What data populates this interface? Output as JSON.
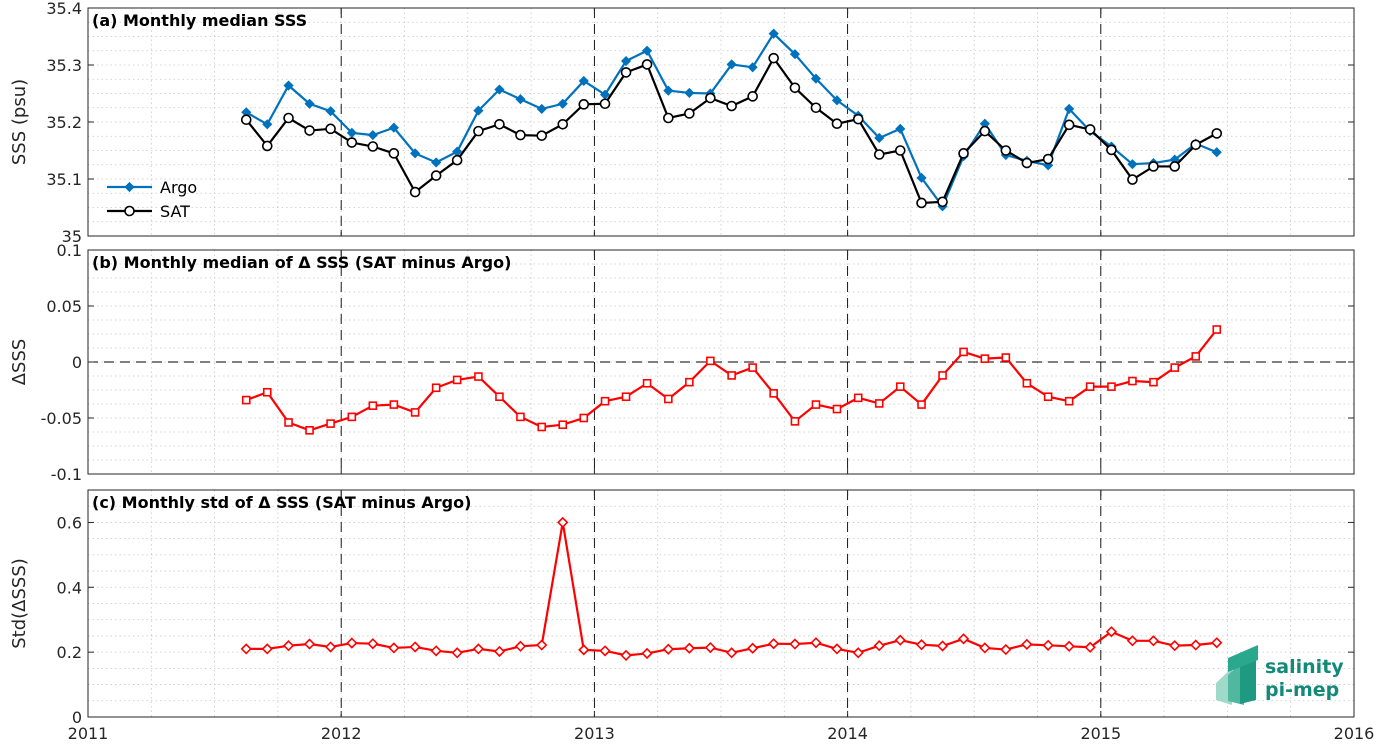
{
  "chart_data": [
    {
      "type": "line",
      "title": "(a) Monthly median SSS",
      "ylabel": "SSS (psu)",
      "xlim": [
        2011,
        2016
      ],
      "ylim": [
        35,
        35.4
      ],
      "yticks": [
        "35",
        "35.1",
        "35.2",
        "35.3",
        "35.4"
      ],
      "xticks": [
        "2011",
        "2012",
        "2013",
        "2014",
        "2015",
        "2016"
      ],
      "grid": true,
      "legend": "bottom-left",
      "year_lines": [
        2012,
        2013,
        2014,
        2015
      ],
      "x": [
        2011.625,
        2011.708,
        2011.792,
        2011.875,
        2011.958,
        2012.042,
        2012.125,
        2012.208,
        2012.292,
        2012.375,
        2012.458,
        2012.542,
        2012.625,
        2012.708,
        2012.792,
        2012.875,
        2012.958,
        2013.042,
        2013.125,
        2013.208,
        2013.292,
        2013.375,
        2013.458,
        2013.542,
        2013.625,
        2013.708,
        2013.792,
        2013.875,
        2013.958,
        2014.042,
        2014.125,
        2014.208,
        2014.292,
        2014.375,
        2014.458,
        2014.542,
        2014.625,
        2014.708,
        2014.792,
        2014.875,
        2014.958,
        2015.042,
        2015.125,
        2015.208,
        2015.292,
        2015.375,
        2015.458
      ],
      "series": [
        {
          "name": "Argo",
          "color": "#0072bd",
          "marker": "diamond",
          "values": [
            35.217,
            35.196,
            35.264,
            35.232,
            35.219,
            35.181,
            35.177,
            35.19,
            35.145,
            35.129,
            35.148,
            35.22,
            35.257,
            35.24,
            35.223,
            35.232,
            35.272,
            35.248,
            35.307,
            35.325,
            35.255,
            35.251,
            35.25,
            35.301,
            35.296,
            35.355,
            35.319,
            35.276,
            35.238,
            35.211,
            35.172,
            35.188,
            35.102,
            35.052,
            35.14,
            35.197,
            35.142,
            35.132,
            35.124,
            35.223,
            35.184,
            35.157,
            35.126,
            35.128,
            35.134,
            35.162,
            35.147
          ]
        },
        {
          "name": "SAT",
          "color": "#000000",
          "marker": "circle",
          "values": [
            35.204,
            35.158,
            35.207,
            35.185,
            35.188,
            35.164,
            35.157,
            35.145,
            35.077,
            35.106,
            35.133,
            35.184,
            35.196,
            35.177,
            35.176,
            35.196,
            35.231,
            35.232,
            35.287,
            35.301,
            35.207,
            35.215,
            35.242,
            35.228,
            35.245,
            35.312,
            35.26,
            35.225,
            35.197,
            35.205,
            35.143,
            35.15,
            35.058,
            35.06,
            35.145,
            35.184,
            35.15,
            35.128,
            35.135,
            35.195,
            35.187,
            35.151,
            35.099,
            35.122,
            35.122,
            35.16,
            35.18
          ]
        }
      ]
    },
    {
      "type": "line",
      "title": "(b) Monthly median of Δ SSS (SAT minus Argo)",
      "ylabel": "ΔSSS",
      "xlim": [
        2011,
        2016
      ],
      "ylim": [
        -0.1,
        0.1
      ],
      "yticks": [
        "-0.1",
        "-0.05",
        "0",
        "0.05",
        "0.1"
      ],
      "xticks": [
        "2011",
        "2012",
        "2013",
        "2014",
        "2015",
        "2016"
      ],
      "grid": true,
      "zero_line": true,
      "year_lines": [
        2012,
        2013,
        2014,
        2015
      ],
      "x": [
        2011.625,
        2011.708,
        2011.792,
        2011.875,
        2011.958,
        2012.042,
        2012.125,
        2012.208,
        2012.292,
        2012.375,
        2012.458,
        2012.542,
        2012.625,
        2012.708,
        2012.792,
        2012.875,
        2012.958,
        2013.042,
        2013.125,
        2013.208,
        2013.292,
        2013.375,
        2013.458,
        2013.542,
        2013.625,
        2013.708,
        2013.792,
        2013.875,
        2013.958,
        2014.042,
        2014.125,
        2014.208,
        2014.292,
        2014.375,
        2014.458,
        2014.542,
        2014.625,
        2014.708,
        2014.792,
        2014.875,
        2014.958,
        2015.042,
        2015.125,
        2015.208,
        2015.292,
        2015.375,
        2015.458
      ],
      "series": [
        {
          "color": "#ff0000",
          "marker": "square",
          "values": [
            -0.034,
            -0.027,
            -0.054,
            -0.061,
            -0.055,
            -0.049,
            -0.039,
            -0.038,
            -0.045,
            -0.023,
            -0.016,
            -0.013,
            -0.031,
            -0.049,
            -0.058,
            -0.056,
            -0.05,
            -0.035,
            -0.031,
            -0.019,
            -0.033,
            -0.018,
            0.001,
            -0.012,
            -0.005,
            -0.028,
            -0.053,
            -0.038,
            -0.042,
            -0.032,
            -0.037,
            -0.022,
            -0.038,
            -0.012,
            0.009,
            0.003,
            0.004,
            -0.019,
            -0.031,
            -0.035,
            -0.022,
            -0.022,
            -0.017,
            -0.018,
            -0.005,
            0.005,
            0.029
          ]
        }
      ]
    },
    {
      "type": "line",
      "title": "(c) Monthly std of Δ SSS (SAT minus Argo)",
      "ylabel": "Std(ΔSSS)",
      "xlim": [
        2011,
        2016
      ],
      "ylim": [
        0,
        0.7
      ],
      "yticks": [
        "0",
        "0.2",
        "0.4",
        "0.6"
      ],
      "ytick_values": [
        0,
        0.2,
        0.4,
        0.6
      ],
      "xticks": [
        "2011",
        "2012",
        "2013",
        "2014",
        "2015",
        "2016"
      ],
      "grid": true,
      "year_lines": [
        2012,
        2013,
        2014,
        2015
      ],
      "x": [
        2011.625,
        2011.708,
        2011.792,
        2011.875,
        2011.958,
        2012.042,
        2012.125,
        2012.208,
        2012.292,
        2012.375,
        2012.458,
        2012.542,
        2012.625,
        2012.708,
        2012.792,
        2012.875,
        2012.958,
        2013.042,
        2013.125,
        2013.208,
        2013.292,
        2013.375,
        2013.458,
        2013.542,
        2013.625,
        2013.708,
        2013.792,
        2013.875,
        2013.958,
        2014.042,
        2014.125,
        2014.208,
        2014.292,
        2014.375,
        2014.458,
        2014.542,
        2014.625,
        2014.708,
        2014.792,
        2014.875,
        2014.958,
        2015.042,
        2015.125,
        2015.208,
        2015.292,
        2015.375,
        2015.458
      ],
      "series": [
        {
          "color": "#ff0000",
          "marker": "diamond",
          "values": [
            0.21,
            0.21,
            0.22,
            0.225,
            0.216,
            0.228,
            0.226,
            0.213,
            0.216,
            0.204,
            0.198,
            0.21,
            0.202,
            0.218,
            0.222,
            0.6,
            0.207,
            0.204,
            0.19,
            0.196,
            0.209,
            0.212,
            0.214,
            0.198,
            0.212,
            0.226,
            0.225,
            0.229,
            0.21,
            0.198,
            0.22,
            0.237,
            0.223,
            0.219,
            0.241,
            0.213,
            0.208,
            0.224,
            0.221,
            0.218,
            0.215,
            0.263,
            0.235,
            0.235,
            0.22,
            0.222,
            0.229
          ]
        }
      ]
    }
  ],
  "logo": {
    "line1": "salinity",
    "line2": "pi-mep"
  }
}
